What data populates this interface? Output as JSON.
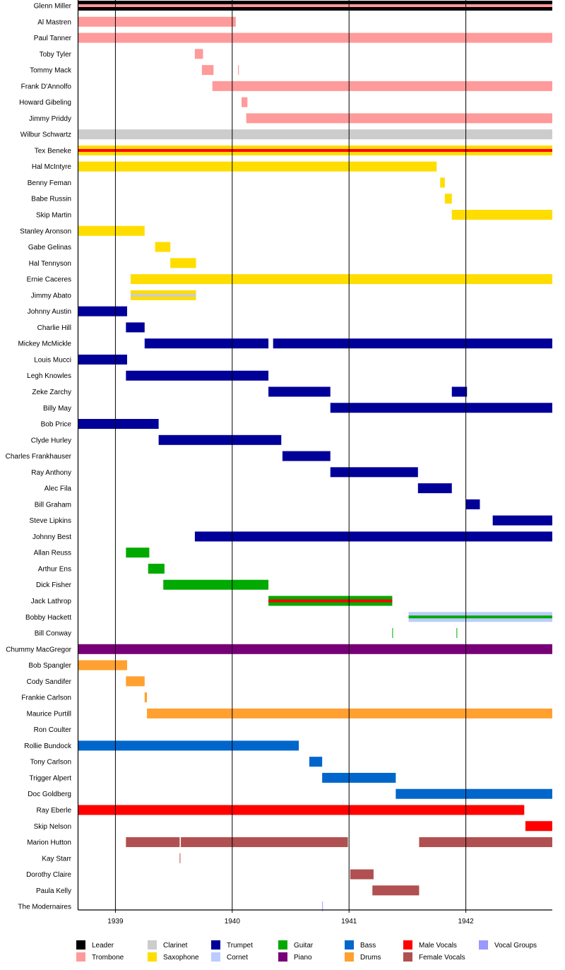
{
  "chart_data": {
    "type": "timeline",
    "x_axis": {
      "ticks": [
        "1939",
        "1940",
        "1941",
        "1942"
      ],
      "tick_values": [
        1939,
        1940,
        1941,
        1942
      ],
      "range": [
        1938.68,
        1942.74
      ],
      "grid": true
    },
    "roles": [
      {
        "name": "Leader",
        "color": "#000000"
      },
      {
        "name": "Trombone",
        "color": "#ff9a9a"
      },
      {
        "name": "Clarinet",
        "color": "#cccccc"
      },
      {
        "name": "Saxophone",
        "color": "#ffdd00"
      },
      {
        "name": "Trumpet",
        "color": "#000099"
      },
      {
        "name": "Cornet",
        "color": "#bbccff"
      },
      {
        "name": "Guitar",
        "color": "#00aa00"
      },
      {
        "name": "Piano",
        "color": "#770077"
      },
      {
        "name": "Bass",
        "color": "#0066cc"
      },
      {
        "name": "Drums",
        "color": "#ffa030"
      },
      {
        "name": "Male Vocals",
        "color": "#ff0000"
      },
      {
        "name": "Female Vocals",
        "color": "#b05050"
      },
      {
        "name": "Vocal Groups",
        "color": "#9999ff"
      }
    ],
    "legend_order": [
      "Leader",
      "Trombone",
      "Clarinet",
      "Saxophone",
      "Trumpet",
      "Cornet",
      "Guitar",
      "Piano",
      "Bass",
      "Drums",
      "Male Vocals",
      "Female Vocals",
      "Vocal Groups"
    ],
    "members": [
      {
        "name": "Glenn Miller",
        "bars": [
          {
            "role": "Leader",
            "start": 1938.68,
            "end": 1942.74,
            "secondary": "Trombone"
          }
        ]
      },
      {
        "name": "Al Mastren",
        "bars": [
          {
            "role": "Trombone",
            "start": 1938.68,
            "end": 1940.03
          }
        ]
      },
      {
        "name": "Paul Tanner",
        "bars": [
          {
            "role": "Trombone",
            "start": 1938.68,
            "end": 1942.74
          }
        ]
      },
      {
        "name": "Toby Tyler",
        "bars": [
          {
            "role": "Trombone",
            "start": 1939.68,
            "end": 1939.75
          }
        ]
      },
      {
        "name": "Tommy Mack",
        "bars": [
          {
            "role": "Trombone",
            "start": 1939.74,
            "end": 1939.84
          },
          {
            "role": "Trombone",
            "start": 1940.05,
            "end": 1940.057
          }
        ]
      },
      {
        "name": "Frank D'Annolfo",
        "bars": [
          {
            "role": "Trombone",
            "start": 1939.83,
            "end": 1942.74
          }
        ]
      },
      {
        "name": "Howard Gibeling",
        "bars": [
          {
            "role": "Trombone",
            "start": 1940.08,
            "end": 1940.13
          }
        ]
      },
      {
        "name": "Jimmy Priddy",
        "bars": [
          {
            "role": "Trombone",
            "start": 1940.12,
            "end": 1942.74
          }
        ]
      },
      {
        "name": "Wilbur Schwartz",
        "bars": [
          {
            "role": "Clarinet",
            "start": 1938.68,
            "end": 1942.74
          }
        ]
      },
      {
        "name": "Tex Beneke",
        "bars": [
          {
            "role": "Saxophone",
            "start": 1938.68,
            "end": 1942.74,
            "secondary": "Male Vocals"
          }
        ]
      },
      {
        "name": "Hal McIntyre",
        "bars": [
          {
            "role": "Saxophone",
            "start": 1938.68,
            "end": 1941.75
          }
        ]
      },
      {
        "name": "Benny Feman",
        "bars": [
          {
            "role": "Saxophone",
            "start": 1941.78,
            "end": 1941.82
          }
        ]
      },
      {
        "name": "Babe Russin",
        "bars": [
          {
            "role": "Saxophone",
            "start": 1941.82,
            "end": 1941.88
          }
        ]
      },
      {
        "name": "Skip Martin",
        "bars": [
          {
            "role": "Saxophone",
            "start": 1941.88,
            "end": 1942.74
          }
        ]
      },
      {
        "name": "Stanley Aronson",
        "bars": [
          {
            "role": "Saxophone",
            "start": 1938.68,
            "end": 1939.25
          }
        ]
      },
      {
        "name": "Gabe Gelinas",
        "bars": [
          {
            "role": "Saxophone",
            "start": 1939.34,
            "end": 1939.47
          }
        ]
      },
      {
        "name": "Hal Tennyson",
        "bars": [
          {
            "role": "Saxophone",
            "start": 1939.47,
            "end": 1939.69
          }
        ]
      },
      {
        "name": "Ernie Caceres",
        "bars": [
          {
            "role": "Saxophone",
            "start": 1939.13,
            "end": 1942.74
          }
        ]
      },
      {
        "name": "Jimmy Abato",
        "bars": [
          {
            "role": "Saxophone",
            "start": 1939.13,
            "end": 1939.69,
            "secondary": "Clarinet"
          }
        ]
      },
      {
        "name": "Johnny Austin",
        "bars": [
          {
            "role": "Trumpet",
            "start": 1938.68,
            "end": 1939.1
          }
        ]
      },
      {
        "name": "Charlie Hill",
        "bars": [
          {
            "role": "Trumpet",
            "start": 1939.09,
            "end": 1939.25
          }
        ]
      },
      {
        "name": "Mickey McMickle",
        "bars": [
          {
            "role": "Trumpet",
            "start": 1939.25,
            "end": 1940.31
          },
          {
            "role": "Trumpet",
            "start": 1940.35,
            "end": 1942.74
          }
        ]
      },
      {
        "name": "Louis Mucci",
        "bars": [
          {
            "role": "Trumpet",
            "start": 1938.68,
            "end": 1939.1
          }
        ]
      },
      {
        "name": "Legh Knowles",
        "bars": [
          {
            "role": "Trumpet",
            "start": 1939.09,
            "end": 1940.31
          }
        ]
      },
      {
        "name": "Zeke Zarchy",
        "bars": [
          {
            "role": "Trumpet",
            "start": 1940.31,
            "end": 1940.84
          },
          {
            "role": "Trumpet",
            "start": 1941.88,
            "end": 1942.01
          }
        ]
      },
      {
        "name": "Billy May",
        "bars": [
          {
            "role": "Trumpet",
            "start": 1940.84,
            "end": 1942.74
          }
        ]
      },
      {
        "name": "Bob Price",
        "bars": [
          {
            "role": "Trumpet",
            "start": 1938.68,
            "end": 1939.37
          }
        ]
      },
      {
        "name": "Clyde Hurley",
        "bars": [
          {
            "role": "Trumpet",
            "start": 1939.37,
            "end": 1940.42
          }
        ]
      },
      {
        "name": "Charles Frankhauser",
        "bars": [
          {
            "role": "Trumpet",
            "start": 1940.43,
            "end": 1940.84
          }
        ]
      },
      {
        "name": "Ray Anthony",
        "bars": [
          {
            "role": "Trumpet",
            "start": 1940.84,
            "end": 1941.59
          }
        ]
      },
      {
        "name": "Alec Fila",
        "bars": [
          {
            "role": "Trumpet",
            "start": 1941.59,
            "end": 1941.88
          }
        ]
      },
      {
        "name": "Bill Graham",
        "bars": [
          {
            "role": "Trumpet",
            "start": 1942.0,
            "end": 1942.12
          }
        ]
      },
      {
        "name": "Steve Lipkins",
        "bars": [
          {
            "role": "Trumpet",
            "start": 1942.23,
            "end": 1942.74
          }
        ]
      },
      {
        "name": "Johnny Best",
        "bars": [
          {
            "role": "Trumpet",
            "start": 1939.68,
            "end": 1942.74
          }
        ]
      },
      {
        "name": "Allan Reuss",
        "bars": [
          {
            "role": "Guitar",
            "start": 1939.09,
            "end": 1939.29
          }
        ]
      },
      {
        "name": "Arthur Ens",
        "bars": [
          {
            "role": "Guitar",
            "start": 1939.28,
            "end": 1939.42
          }
        ]
      },
      {
        "name": "Dick Fisher",
        "bars": [
          {
            "role": "Guitar",
            "start": 1939.41,
            "end": 1940.31
          }
        ]
      },
      {
        "name": "Jack Lathrop",
        "bars": [
          {
            "role": "Guitar",
            "start": 1940.31,
            "end": 1941.37,
            "secondary": "Male Vocals"
          }
        ]
      },
      {
        "name": "Bobby Hackett",
        "bars": [
          {
            "role": "Cornet",
            "start": 1941.51,
            "end": 1942.74,
            "secondary": "Guitar"
          }
        ]
      },
      {
        "name": "Bill Conway",
        "bars": [
          {
            "role": "Guitar",
            "start": 1941.37,
            "end": 1941.375
          },
          {
            "role": "Guitar",
            "start": 1941.92,
            "end": 1941.925
          }
        ]
      },
      {
        "name": "Chummy MacGregor",
        "bars": [
          {
            "role": "Piano",
            "start": 1938.68,
            "end": 1942.74
          }
        ]
      },
      {
        "name": "Bob Spangler",
        "bars": [
          {
            "role": "Drums",
            "start": 1938.68,
            "end": 1939.1
          }
        ]
      },
      {
        "name": "Cody Sandifer",
        "bars": [
          {
            "role": "Drums",
            "start": 1939.09,
            "end": 1939.25
          }
        ]
      },
      {
        "name": "Frankie Carlson",
        "bars": [
          {
            "role": "Drums",
            "start": 1939.25,
            "end": 1939.27
          }
        ]
      },
      {
        "name": "Maurice Purtill",
        "bars": [
          {
            "role": "Drums",
            "start": 1939.27,
            "end": 1942.74
          }
        ]
      },
      {
        "name": "Ron Coulter",
        "bars": []
      },
      {
        "name": "Rollie Bundock",
        "bars": [
          {
            "role": "Bass",
            "start": 1938.68,
            "end": 1940.57
          }
        ]
      },
      {
        "name": "Tony Carlson",
        "bars": [
          {
            "role": "Bass",
            "start": 1940.66,
            "end": 1940.77
          }
        ]
      },
      {
        "name": "Trigger Alpert",
        "bars": [
          {
            "role": "Bass",
            "start": 1940.77,
            "end": 1941.4
          }
        ]
      },
      {
        "name": "Doc Goldberg",
        "bars": [
          {
            "role": "Bass",
            "start": 1941.4,
            "end": 1942.74
          }
        ]
      },
      {
        "name": "Ray Eberle",
        "bars": [
          {
            "role": "Male Vocals",
            "start": 1938.68,
            "end": 1942.5
          }
        ]
      },
      {
        "name": "Skip Nelson",
        "bars": [
          {
            "role": "Male Vocals",
            "start": 1942.51,
            "end": 1942.74
          }
        ]
      },
      {
        "name": "Marion Hutton",
        "bars": [
          {
            "role": "Female Vocals",
            "start": 1939.09,
            "end": 1939.55
          },
          {
            "role": "Female Vocals",
            "start": 1939.56,
            "end": 1940.99
          },
          {
            "role": "Female Vocals",
            "start": 1941.6,
            "end": 1942.74
          }
        ]
      },
      {
        "name": "Kay Starr",
        "bars": [
          {
            "role": "Female Vocals",
            "start": 1939.55,
            "end": 1939.556
          }
        ]
      },
      {
        "name": "Dorothy Claire",
        "bars": [
          {
            "role": "Female Vocals",
            "start": 1941.01,
            "end": 1941.21
          }
        ]
      },
      {
        "name": "Paula Kelly",
        "bars": [
          {
            "role": "Female Vocals",
            "start": 1941.2,
            "end": 1941.6
          }
        ]
      },
      {
        "name": "The Modernaires",
        "bars": [
          {
            "role": "Vocal Groups",
            "start": 1940.77,
            "end": 1940.776
          }
        ]
      }
    ]
  }
}
